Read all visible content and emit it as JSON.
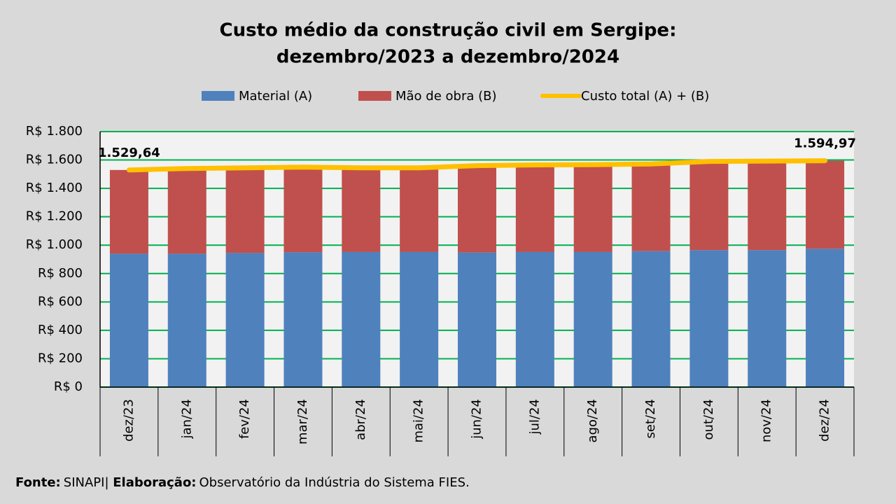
{
  "chart_data": {
    "type": "stacked_bar_line",
    "title": [
      "Custo médio da construção civil em Sergipe:",
      "dezembro/2023 a dezembro/2024"
    ],
    "categories": [
      "dez/23",
      "jan/24",
      "fev/24",
      "mar/24",
      "abr/24",
      "mai/24",
      "jun/24",
      "jul/24",
      "ago/24",
      "set/24",
      "out/24",
      "nov/24",
      "dez/24"
    ],
    "series": [
      {
        "name": "Material (A)",
        "color": "#4f81bd",
        "kind": "bar",
        "values": [
          940,
          940,
          945,
          950,
          952,
          952,
          948,
          952,
          952,
          958,
          965,
          965,
          975
        ]
      },
      {
        "name": "Mão de obra (B)",
        "color": "#c0504d",
        "kind": "bar",
        "values": [
          589.64,
          600,
          600,
          600,
          593,
          593,
          612,
          613,
          615,
          614,
          625,
          627,
          619.97
        ]
      },
      {
        "name": "Custo total (A) + (B)",
        "color": "#ffc000",
        "kind": "line",
        "values": [
          1529.64,
          1540,
          1545,
          1550,
          1545,
          1545,
          1560,
          1565,
          1567,
          1572,
          1590,
          1592,
          1594.97
        ],
        "value_labels": [
          "1.529,64",
          null,
          null,
          null,
          null,
          null,
          null,
          null,
          null,
          null,
          null,
          null,
          "1.594,97"
        ]
      }
    ],
    "ylim": [
      0,
      1800
    ],
    "yticks": [
      {
        "value": 0,
        "label": "R$ 0"
      },
      {
        "value": 200,
        "label": "R$ 200"
      },
      {
        "value": 400,
        "label": "R$ 400"
      },
      {
        "value": 600,
        "label": "R$ 600"
      },
      {
        "value": 800,
        "label": "R$ 800"
      },
      {
        "value": 1000,
        "label": "R$ 1.000"
      },
      {
        "value": 1200,
        "label": "R$ 1.200"
      },
      {
        "value": 1400,
        "label": "R$ 1.400"
      },
      {
        "value": 1600,
        "label": "R$ 1.600"
      },
      {
        "value": 1800,
        "label": "R$ 1.800"
      }
    ],
    "grid": true,
    "grid_color": "#00b050",
    "source": {
      "label1": "Fonte:",
      "text1": "SINAPI| ",
      "label2": "Elaboração:",
      "text2": "Observatório da Indústria do Sistema FIES."
    }
  }
}
